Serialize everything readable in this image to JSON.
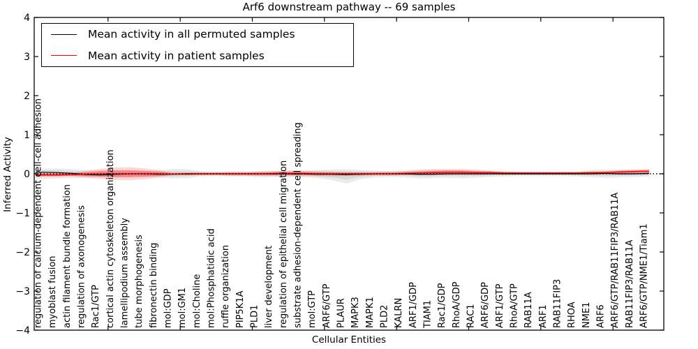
{
  "figure": {
    "title": "Arf6 downstream pathway -- 69 samples",
    "xlabel": "Cellular Entities",
    "ylabel": "Inferred Activity"
  },
  "legend": {
    "position": "upper left",
    "entries": [
      {
        "label": "Mean activity in all permuted samples",
        "color": "#000000"
      },
      {
        "label": "Mean activity in patient samples",
        "color": "#ff0000"
      }
    ]
  },
  "chart_data": {
    "type": "line",
    "title": "Arf6 downstream pathway -- 69 samples",
    "xlabel": "Cellular Entities",
    "ylabel": "Inferred Activity",
    "ylim": [
      -4,
      4
    ],
    "yticks": [
      4,
      3,
      2,
      1,
      0,
      -1,
      -2,
      -3,
      -4
    ],
    "grid": false,
    "zero_line": {
      "style": "dotted",
      "color": "#000000",
      "value": 0
    },
    "band_colors": {
      "permuted": "#bdbdbd",
      "patient": "#ff0000"
    },
    "categories": [
      "regulation of calcium-dependent cell-cell adhesion",
      "myoblast fusion",
      "actin filament bundle formation",
      "regulation of axonogenesis",
      "Rac1/GTP",
      "cortical actin cytoskeleton organization",
      "lamellipodium assembly",
      "tube morphogenesis",
      "fibronectin binding",
      "mol:GDP",
      "mol:GM1",
      "mol:Choline",
      "mol:Phosphatidic acid",
      "ruffle organization",
      "PIP5K1A",
      "PLD1",
      "liver development",
      "regulation of epithelial cell migration",
      "substrate adhesion-dependent cell spreading",
      "mol:GTP",
      "ARF6/GTP",
      "PLAUR",
      "MAPK3",
      "MAPK1",
      "PLD2",
      "KALRN",
      "ARF1/GDP",
      "TIAM1",
      "Rac1/GDP",
      "RhoA/GDP",
      "RAC1",
      "ARF6/GDP",
      "ARF1/GTP",
      "RhoA/GTP",
      "RAB11A",
      "ARF1",
      "RAB11FIP3",
      "RHOA",
      "NME1",
      "ARF6",
      "ARF6/GTP/RAB11FIP3/RAB11A",
      "RAB11FIP3/RAB11A",
      "ARF6/GTP/NME1/Tiam1"
    ],
    "series": [
      {
        "name": "Mean activity in all permuted samples",
        "color": "#000000",
        "values": [
          0.04,
          0.03,
          0.01,
          -0.02,
          -0.03,
          -0.01,
          0,
          0,
          -0.01,
          -0.01,
          0,
          0,
          0,
          0,
          0,
          0,
          0,
          0,
          0,
          -0.01,
          -0.01,
          -0.02,
          -0.01,
          0,
          0,
          0,
          -0.01,
          -0.01,
          0,
          0,
          0,
          0,
          0,
          0,
          0,
          0,
          0,
          0,
          0,
          0.01,
          0,
          0,
          0.01
        ]
      },
      {
        "name": "Mean activity in patient samples",
        "color": "#ff0000",
        "values": [
          -0.03,
          -0.03,
          -0.02,
          -0.01,
          0,
          0,
          0,
          0,
          0,
          -0.01,
          -0.01,
          0,
          0,
          0,
          0,
          0,
          0.01,
          0.01,
          0.01,
          0,
          0,
          0,
          0,
          0,
          0,
          0.01,
          0.02,
          0.03,
          0.04,
          0.04,
          0.03,
          0.03,
          0.02,
          0.02,
          0.02,
          0.02,
          0.02,
          0.02,
          0.03,
          0.03,
          0.05,
          0.06,
          0.07
        ]
      }
    ],
    "bands": [
      {
        "name": "permuted activity range",
        "color": "#000000",
        "hi": [
          0.13,
          0.14,
          0.12,
          0.1,
          0.09,
          0.09,
          0.08,
          0.08,
          0.09,
          0.13,
          0.12,
          0.07,
          0.06,
          0.06,
          0.06,
          0.07,
          0.07,
          0.08,
          0.08,
          0.1,
          0.11,
          0.12,
          0.1,
          0.08,
          0.07,
          0.08,
          0.12,
          0.13,
          0.1,
          0.09,
          0.08,
          0.07,
          0.06,
          0.06,
          0.06,
          0.06,
          0.06,
          0.06,
          0.1,
          0.11,
          0.09,
          0.08,
          0.08
        ],
        "lo": [
          -0.13,
          -0.12,
          -0.11,
          -0.1,
          -0.09,
          -0.09,
          -0.08,
          -0.08,
          -0.09,
          -0.12,
          -0.11,
          -0.07,
          -0.06,
          -0.07,
          -0.07,
          -0.08,
          -0.08,
          -0.08,
          -0.09,
          -0.11,
          -0.16,
          -0.25,
          -0.14,
          -0.09,
          -0.08,
          -0.09,
          -0.12,
          -0.11,
          -0.1,
          -0.11,
          -0.1,
          -0.08,
          -0.07,
          -0.06,
          -0.06,
          -0.06,
          -0.06,
          -0.07,
          -0.09,
          -0.1,
          -0.09,
          -0.08,
          -0.07
        ]
      },
      {
        "name": "patient activity range",
        "color": "#ff0000",
        "hi": [
          0.02,
          0.02,
          0.03,
          0.08,
          0.13,
          0.16,
          0.17,
          0.14,
          0.1,
          0.03,
          0.04,
          0.04,
          0.04,
          0.05,
          0.05,
          0.06,
          0.07,
          0.08,
          0.08,
          0.07,
          0.06,
          0.05,
          0.05,
          0.05,
          0.06,
          0.07,
          0.09,
          0.1,
          0.12,
          0.12,
          0.1,
          0.08,
          0.06,
          0.05,
          0.05,
          0.05,
          0.05,
          0.05,
          0.06,
          0.07,
          0.1,
          0.11,
          0.12
        ],
        "lo": [
          -0.08,
          -0.08,
          -0.07,
          -0.1,
          -0.13,
          -0.16,
          -0.16,
          -0.14,
          -0.1,
          -0.03,
          -0.04,
          -0.04,
          -0.04,
          -0.05,
          -0.05,
          -0.06,
          -0.06,
          -0.06,
          -0.06,
          -0.06,
          -0.06,
          -0.06,
          -0.05,
          -0.05,
          -0.05,
          -0.04,
          -0.04,
          -0.03,
          -0.03,
          -0.02,
          -0.03,
          -0.02,
          -0.02,
          -0.02,
          -0.02,
          -0.02,
          -0.02,
          -0.02,
          -0.02,
          -0.02,
          -0.02,
          -0.01,
          -0.01
        ]
      }
    ]
  }
}
